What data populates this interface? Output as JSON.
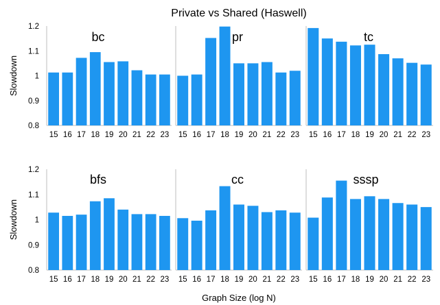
{
  "chart_data": {
    "type": "bar",
    "title": "Private vs Shared (Haswell)",
    "xlabel": "Graph Size (log N)",
    "ylabel": "Slowdown",
    "ylim": [
      0.8,
      1.2
    ],
    "yticks": [
      "0.8",
      "0.9",
      "1",
      "1.1",
      "1.2"
    ],
    "categories": [
      "15",
      "16",
      "17",
      "18",
      "19",
      "20",
      "21",
      "22",
      "23"
    ],
    "grid": false,
    "bar_color": "#1e96f0",
    "panels": [
      {
        "name": "bc",
        "values": [
          1.013,
          1.013,
          1.072,
          1.095,
          1.055,
          1.058,
          1.022,
          1.005,
          1.005
        ]
      },
      {
        "name": "pr",
        "values": [
          1.0,
          1.005,
          1.152,
          1.198,
          1.05,
          1.05,
          1.055,
          1.013,
          1.02
        ]
      },
      {
        "name": "tc",
        "values": [
          1.192,
          1.15,
          1.137,
          1.122,
          1.125,
          1.087,
          1.07,
          1.052,
          1.045
        ]
      },
      {
        "name": "bfs",
        "values": [
          1.028,
          1.015,
          1.02,
          1.073,
          1.085,
          1.04,
          1.022,
          1.022,
          1.015
        ]
      },
      {
        "name": "cc",
        "values": [
          1.006,
          0.996,
          1.037,
          1.133,
          1.06,
          1.055,
          1.03,
          1.037,
          1.028
        ]
      },
      {
        "name": "sssp",
        "values": [
          1.008,
          1.088,
          1.155,
          1.082,
          1.093,
          1.082,
          1.066,
          1.06,
          1.05
        ]
      }
    ]
  }
}
